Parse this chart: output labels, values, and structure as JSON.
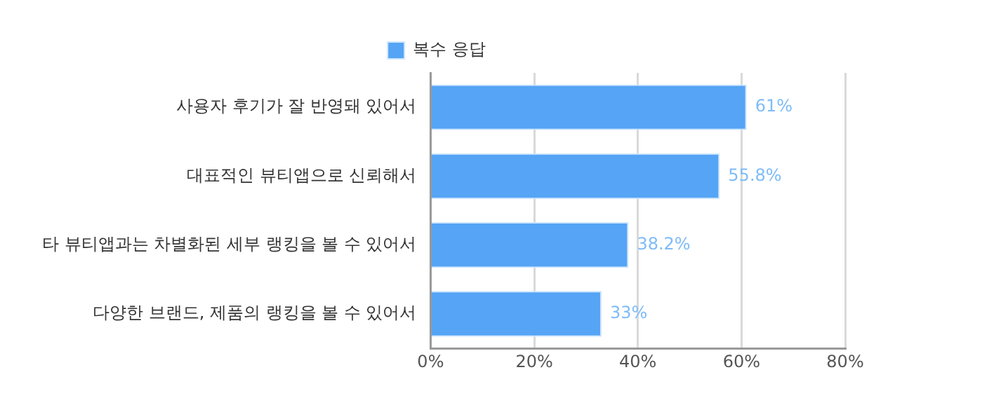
{
  "chart_data": {
    "type": "bar",
    "orientation": "horizontal",
    "categories": [
      "사용자 후기가 잘 반영돼 있어서",
      "대표적인 뷰티앱으로 신뢰해서",
      "타 뷰티앱과는 차별화된 세부 랭킹을 볼 수 있어서",
      "다양한 브랜드, 제품의 랭킹을 볼 수 있어서"
    ],
    "series": [
      {
        "name": "복수 응답",
        "color": "#55a4f5",
        "values": [
          61,
          55.8,
          38.2,
          33
        ],
        "value_labels": [
          "61%",
          "55.8%",
          "38.2%",
          "33%"
        ]
      }
    ],
    "xlim": [
      0,
      80
    ],
    "xticks": [
      {
        "value": 0,
        "label": "0%"
      },
      {
        "value": 20,
        "label": "20%"
      },
      {
        "value": 40,
        "label": "40%"
      },
      {
        "value": 60,
        "label": "60%"
      },
      {
        "value": 80,
        "label": "80%"
      }
    ],
    "grid": "x",
    "legend": "top"
  }
}
